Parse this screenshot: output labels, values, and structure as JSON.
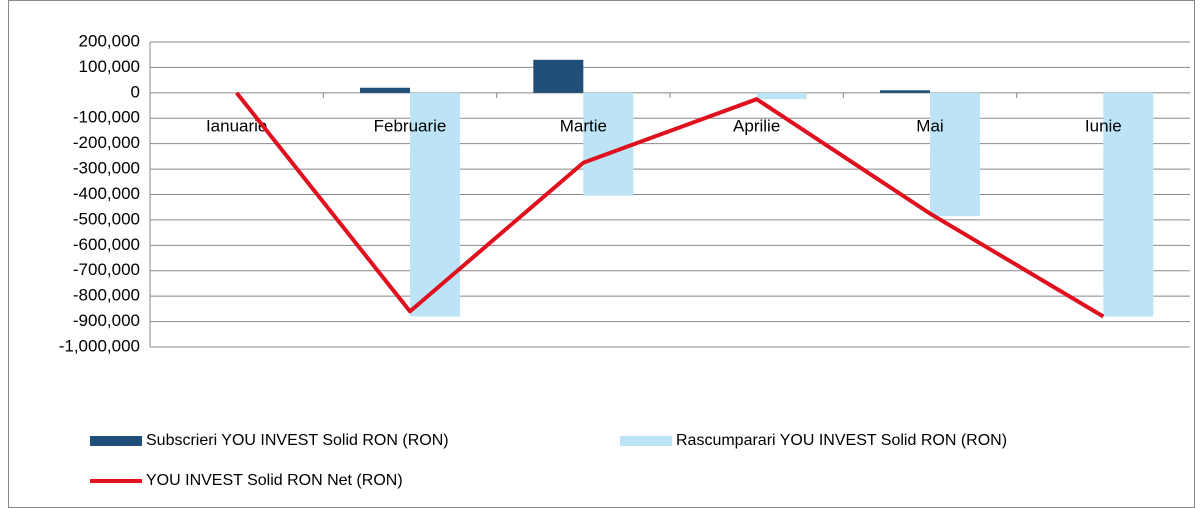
{
  "chart_data": {
    "type": "bar",
    "categories": [
      "Ianuarie",
      "Februarie",
      "Martie",
      "Aprilie",
      "Mai",
      "Iunie"
    ],
    "series": [
      {
        "name": "Subscrieri YOU INVEST Solid RON (RON)",
        "color": "#1f4e79",
        "type": "bar",
        "values": [
          0,
          20000,
          130000,
          0,
          10000,
          0
        ]
      },
      {
        "name": "Rascumparari YOU INVEST Solid RON (RON)",
        "color": "#bde3f7",
        "type": "bar",
        "values": [
          0,
          -880000,
          -405000,
          -25000,
          -485000,
          -880000
        ]
      },
      {
        "name": "YOU INVEST Solid RON Net (RON)",
        "color": "#e0101e",
        "type": "line",
        "values": [
          0,
          -860000,
          -275000,
          -25000,
          -475000,
          -880000
        ]
      }
    ],
    "ylim": [
      -1000000,
      200000
    ],
    "yticks": [
      {
        "value": 200000,
        "label": "200,000"
      },
      {
        "value": 100000,
        "label": "100,000"
      },
      0,
      {
        "value": -100000,
        "label": "-100,000"
      },
      {
        "value": -200000,
        "label": "-200,000"
      },
      {
        "value": -300000,
        "label": "-300,000"
      },
      {
        "value": -400000,
        "label": "-400,000"
      },
      {
        "value": -500000,
        "label": "-500,000"
      },
      {
        "value": -600000,
        "label": "-600,000"
      },
      {
        "value": -700000,
        "label": "-700,000"
      },
      {
        "value": -800000,
        "label": "-800,000"
      },
      {
        "value": -900000,
        "label": "-900,000"
      },
      {
        "value": -1000000,
        "label": "-1,000,000"
      }
    ],
    "grid": true,
    "legend": "bottom"
  }
}
